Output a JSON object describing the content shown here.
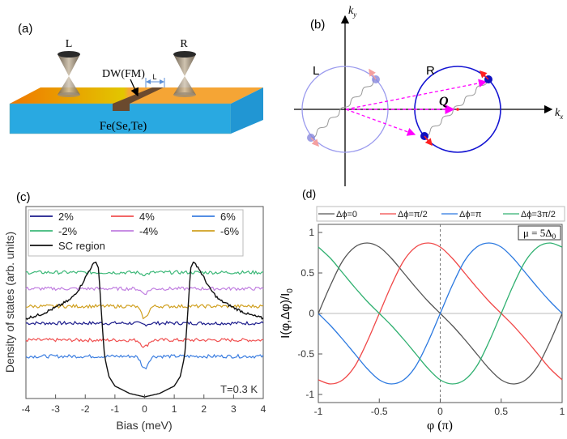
{
  "panel_a": {
    "label": "(a)",
    "tip_left": "L",
    "tip_right": "R",
    "domain_wall": "DW(FM)",
    "distance": "L",
    "material": "Fe(Se,Te)",
    "colors": {
      "top_orange": "#f5a535",
      "top_gradient_start": "#f07800",
      "top_gradient_mid": "#e2c600",
      "front": "#29a9e1",
      "side": "#2196d3",
      "dw": "#6b4a2e"
    }
  },
  "panel_b": {
    "label": "(b)",
    "axis_x": "k",
    "axis_x_sub": "x",
    "axis_y": "k",
    "axis_y_sub": "y",
    "circle_left": "L",
    "circle_right": "R",
    "vector": "Q",
    "colors": {
      "left_circle": "#9b9bee",
      "right_circle": "#1414d2",
      "vector": "#ff00ff",
      "spin": "#ff2020"
    }
  },
  "chart_data": [
    {
      "panel": "(c)",
      "type": "line",
      "xlabel": "Bias (meV)",
      "ylabel": "Density of states (arb. units)",
      "xlim": [
        -4,
        4
      ],
      "xticks": [
        "-4",
        "-3",
        "-2",
        "-1",
        "0",
        "1",
        "2",
        "3",
        "4"
      ],
      "ylim": [
        0,
        1.4
      ],
      "annotation": "T=0.3 K",
      "legend_placement": "top",
      "grid": false,
      "series": [
        {
          "name": "2%",
          "color": "#1c1c8c",
          "baseline": 0.545,
          "zero_bias_dip": 0.01
        },
        {
          "name": "4%",
          "color": "#f05050",
          "baseline": 0.42,
          "zero_bias_dip": 0.05
        },
        {
          "name": "6%",
          "color": "#3c7ee0",
          "baseline": 0.3,
          "zero_bias_dip": 0.09
        },
        {
          "name": "-2%",
          "color": "#3cb878",
          "baseline": 0.92,
          "zero_bias_dip": 0.015
        },
        {
          "name": "-4%",
          "color": "#c07ee0",
          "baseline": 0.8,
          "zero_bias_dip": 0.035
        },
        {
          "name": "-6%",
          "color": "#d0a020",
          "baseline": 0.67,
          "zero_bias_dip": 0.09
        },
        {
          "name": "SC region",
          "color": "#111111",
          "x": [
            -4,
            -3.5,
            -3,
            -2.5,
            -2.2,
            -2,
            -1.8,
            -1.65,
            -1.55,
            -1.45,
            -1.35,
            -1.2,
            -1,
            -0.5,
            0,
            0.5,
            1,
            1.2,
            1.35,
            1.45,
            1.55,
            1.65,
            1.8,
            2,
            2.2,
            2.5,
            3,
            3.5,
            4
          ],
          "y": [
            0.58,
            0.61,
            0.66,
            0.72,
            0.8,
            0.88,
            0.96,
            1.0,
            0.95,
            0.6,
            0.3,
            0.15,
            0.08,
            0.025,
            0,
            0.025,
            0.08,
            0.15,
            0.3,
            0.6,
            0.95,
            1.0,
            0.96,
            0.88,
            0.8,
            0.72,
            0.66,
            0.61,
            0.58
          ]
        }
      ]
    },
    {
      "panel": "(d)",
      "type": "line",
      "xlabel": "φ (π)",
      "ylabel": "I(φ,Δφ)/I",
      "ylabel_sub": "0",
      "xlim": [
        -1,
        1
      ],
      "ylim": [
        -1.1,
        1.1
      ],
      "xticks": [
        "-1",
        "-0.5",
        "0",
        "0.5",
        "1"
      ],
      "yticks": [
        "1",
        "0.5",
        "0",
        "-0.5",
        "-1"
      ],
      "annotation": "μ = 5Δ",
      "annotation_sub": "0",
      "legend_placement": "top",
      "grid": false,
      "x": [
        -1,
        -0.9,
        -0.8,
        -0.7,
        -0.6,
        -0.5,
        -0.4,
        -0.3,
        -0.2,
        -0.1,
        0,
        0.1,
        0.2,
        0.3,
        0.4,
        0.5,
        0.6,
        0.7,
        0.8,
        0.9,
        1
      ],
      "series": [
        {
          "name": "Δϕ=0",
          "color": "#555555",
          "values": [
            0,
            0.35,
            0.65,
            0.82,
            0.87,
            0.82,
            0.68,
            0.5,
            0.32,
            0.15,
            0,
            -0.15,
            -0.32,
            -0.5,
            -0.68,
            -0.82,
            -0.87,
            -0.82,
            -0.65,
            -0.35,
            0
          ]
        },
        {
          "name": "Δϕ=π/2",
          "color": "#f04848",
          "values": [
            -0.82,
            -0.87,
            -0.82,
            -0.65,
            -0.35,
            0,
            0.35,
            0.65,
            0.82,
            0.87,
            0.82,
            0.68,
            0.5,
            0.32,
            0.15,
            0,
            -0.15,
            -0.32,
            -0.5,
            -0.68,
            -0.82
          ]
        },
        {
          "name": "Δϕ=π",
          "color": "#2a78e0",
          "values": [
            0,
            -0.15,
            -0.32,
            -0.5,
            -0.68,
            -0.82,
            -0.87,
            -0.82,
            -0.65,
            -0.35,
            0,
            0.35,
            0.65,
            0.82,
            0.87,
            0.82,
            0.68,
            0.5,
            0.32,
            0.15,
            0
          ]
        },
        {
          "name": "Δϕ=3π/2",
          "color": "#30b070",
          "values": [
            0.82,
            0.68,
            0.5,
            0.32,
            0.15,
            0,
            -0.15,
            -0.32,
            -0.5,
            -0.68,
            -0.82,
            -0.87,
            -0.82,
            -0.65,
            -0.35,
            0,
            0.35,
            0.65,
            0.82,
            0.87,
            0.82
          ]
        }
      ]
    }
  ]
}
